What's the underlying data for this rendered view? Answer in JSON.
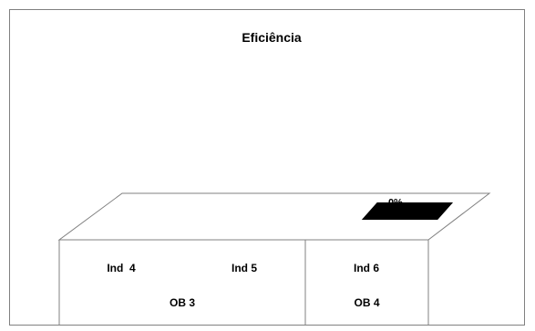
{
  "chart_data": {
    "type": "bar",
    "title": "Eficiência",
    "categories": [
      "Ind  4",
      "Ind 5",
      "Ind 6"
    ],
    "groups": [
      {
        "label": "OB 3",
        "categories": [
          "Ind  4",
          "Ind 5"
        ]
      },
      {
        "label": "OB 4",
        "categories": [
          "Ind 6"
        ]
      }
    ],
    "series": [
      {
        "values": [
          0,
          0,
          0
        ]
      }
    ],
    "data_labels": [
      "",
      "",
      "0%"
    ],
    "ylim": [
      0,
      1
    ],
    "style": "3d",
    "grid": false,
    "legend": "none",
    "colors": {
      "bar": "#000000",
      "outline": "#808080",
      "floor": "#ffffff",
      "text": "#000000"
    }
  }
}
